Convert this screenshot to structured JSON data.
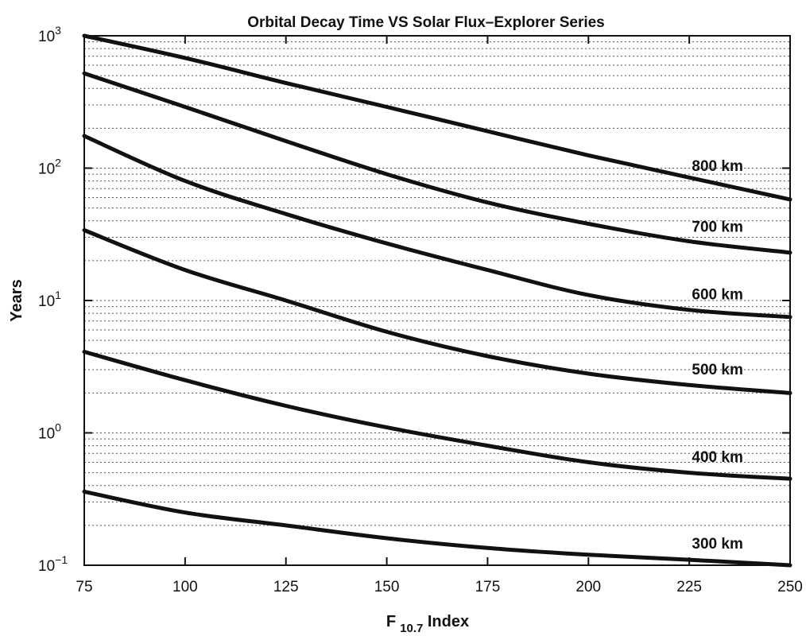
{
  "chart_data": {
    "type": "line",
    "title": "Orbital Decay Time VS Solar Flux–Explorer Series",
    "xlabel": "F 10.7 Index",
    "xlabel_main": "F",
    "xlabel_sub": "10.7",
    "xlabel_tail": " Index",
    "ylabel": "Years",
    "xlim": [
      75,
      250
    ],
    "ylim": [
      0.1,
      1000
    ],
    "yscale": "log",
    "grid": true,
    "x_ticks": [
      "75",
      "100",
      "125",
      "150",
      "175",
      "200",
      "225",
      "250"
    ],
    "y_ticks": [
      {
        "value": 0.1,
        "base": "10",
        "exp": "−1"
      },
      {
        "value": 1,
        "base": "10",
        "exp": "0"
      },
      {
        "value": 10,
        "base": "10",
        "exp": "1"
      },
      {
        "value": 100,
        "base": "10",
        "exp": "2"
      },
      {
        "value": 1000,
        "base": "10",
        "exp": "3"
      }
    ],
    "x": [
      75,
      100,
      125,
      150,
      175,
      200,
      225,
      250
    ],
    "series": [
      {
        "name": "800 km",
        "values": [
          1000,
          680,
          440,
          290,
          190,
          125,
          85,
          58
        ]
      },
      {
        "name": "700 km",
        "values": [
          520,
          290,
          160,
          90,
          55,
          38,
          28,
          23
        ]
      },
      {
        "name": "600 km",
        "values": [
          175,
          80,
          45,
          27,
          17,
          11,
          8.5,
          7.5
        ]
      },
      {
        "name": "500 km",
        "values": [
          34,
          17,
          10,
          5.8,
          3.8,
          2.8,
          2.3,
          2.0
        ]
      },
      {
        "name": "400 km",
        "values": [
          4.1,
          2.5,
          1.6,
          1.1,
          0.8,
          0.6,
          0.5,
          0.45
        ]
      },
      {
        "name": "300 km",
        "values": [
          0.36,
          0.25,
          0.2,
          0.16,
          0.135,
          0.12,
          0.11,
          0.1
        ]
      }
    ]
  }
}
